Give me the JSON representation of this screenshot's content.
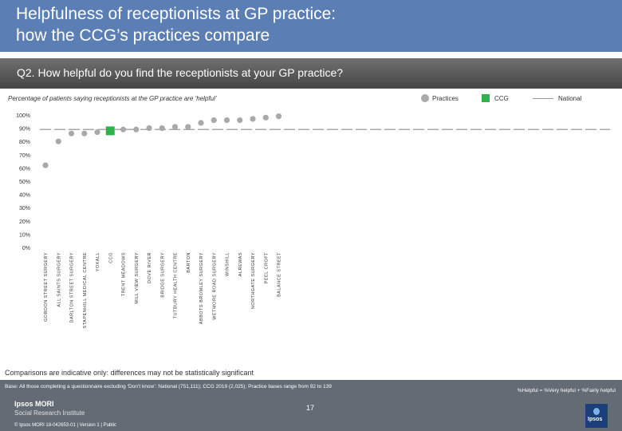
{
  "header": {
    "title_line1": "Helpfulness of receptionists at GP practice:",
    "title_line2": "how the CCG’s practices compare",
    "background": "#5b7fb5"
  },
  "question": "Q2. How helpful do you find the receptionists at your GP practice?",
  "subtitle": "Percentage of patients saying receptionists at the GP practice are ‘helpful’",
  "legend": {
    "practices": "Practices",
    "ccg": "CCG",
    "national": "National"
  },
  "chart_data": {
    "type": "scatter",
    "title": "",
    "ylabel": "",
    "ylim": [
      0,
      100
    ],
    "yticks": [
      "0%",
      "10%",
      "20%",
      "30%",
      "40%",
      "50%",
      "60%",
      "70%",
      "80%",
      "90%",
      "100%"
    ],
    "categories": [
      "GORDON STREET SURGERY",
      "ALL SAINTS SURGERY",
      "DARLTON STREET SURGERY",
      "STAPENHILL MEDICAL CENTRE",
      "YOXALL",
      "CCG",
      "TRENT MEADOWS",
      "MILL VIEW SURGERY",
      "DOVE RIVER",
      "BRIDGE SURGERY",
      "TUTBURY HEALTH CENTRE",
      "BARTON",
      "ABBOTS BROMLEY SURGERY",
      "WETMORE ROAD SURGERY",
      "WINSHILL",
      "ALREWAS",
      "NORTHGATE SURGERY",
      "PEEL CROFT",
      "BALANCE STREET"
    ],
    "values": [
      62,
      80,
      86,
      86,
      87,
      88,
      89,
      89,
      90,
      90,
      91,
      91,
      94,
      96,
      96,
      96,
      97,
      98,
      99
    ],
    "ccg_index": 5,
    "national": 89,
    "colors": {
      "practice": "#a9a9a9",
      "ccg": "#2db34a",
      "national": "#a9a9a9"
    }
  },
  "footnote": "Comparisons are indicative only: differences may not be statistically significant",
  "footer": {
    "base": "Base: All those completing a questionnaire excluding ‘Don’t know’: National (751,111); CCG 2019 (2,025); Practice bases range from 92 to 139",
    "formula": "%Helpful = %Very helpful + %Fairly helpful",
    "logo": "Ipsos MORI",
    "logo_sub": "Social Research Institute",
    "page": "17",
    "copyright": "© Ipsos MORI      18-042653-01 | Version 1 | Public",
    "badge": "Ipsos"
  }
}
